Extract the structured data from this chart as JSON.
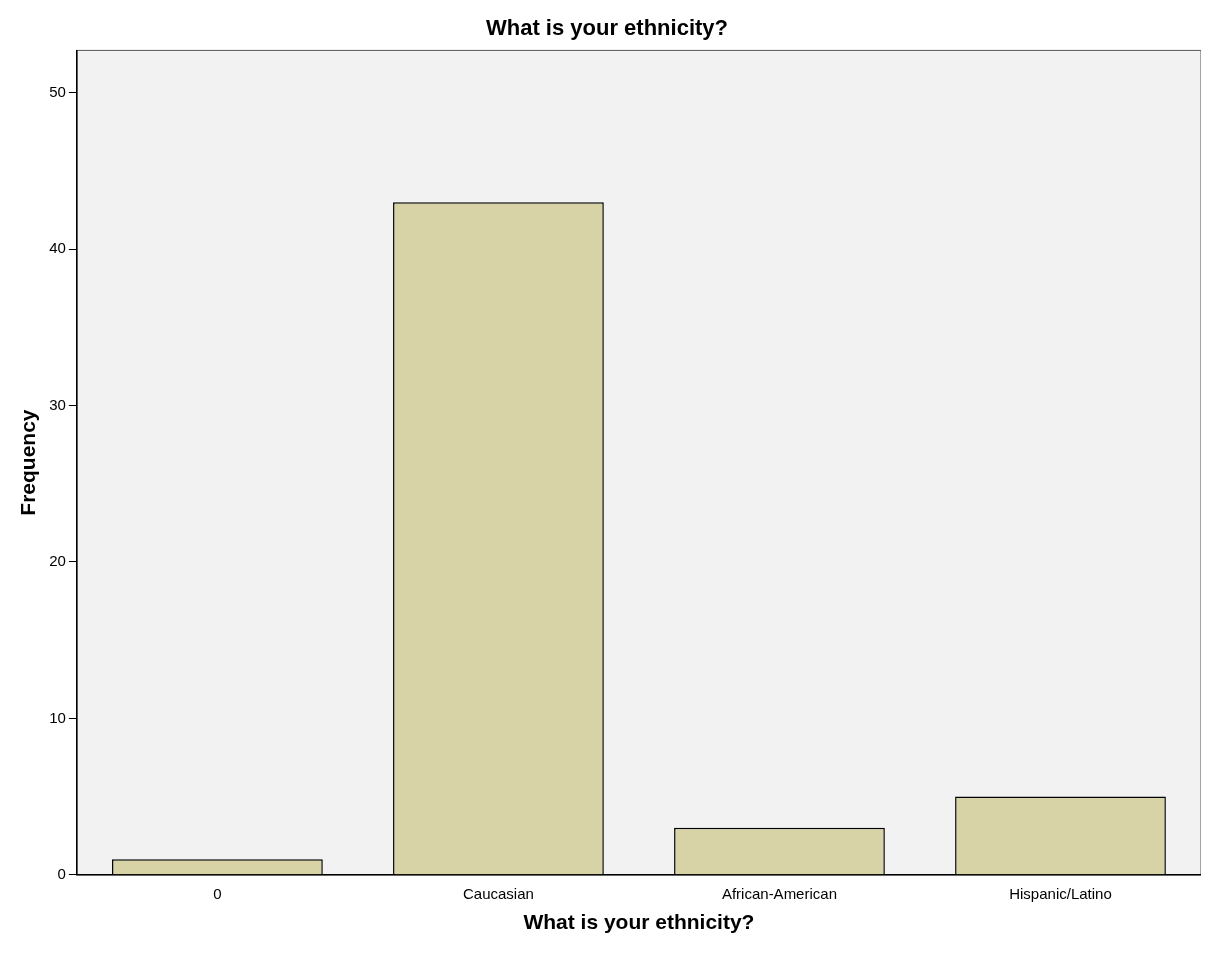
{
  "chart_data": {
    "type": "bar",
    "title": "What is your ethnicity?",
    "xlabel": "What is your ethnicity?",
    "ylabel": "Frequency",
    "categories": [
      "0",
      "Caucasian",
      "African-American",
      "Hispanic/Latino"
    ],
    "values": [
      1,
      43,
      3,
      5
    ],
    "color": "#d8d3a6",
    "ylim": [
      0,
      52.7
    ],
    "yticks": [
      0,
      10,
      20,
      30,
      40,
      50
    ],
    "grid": false,
    "legend": false
  }
}
